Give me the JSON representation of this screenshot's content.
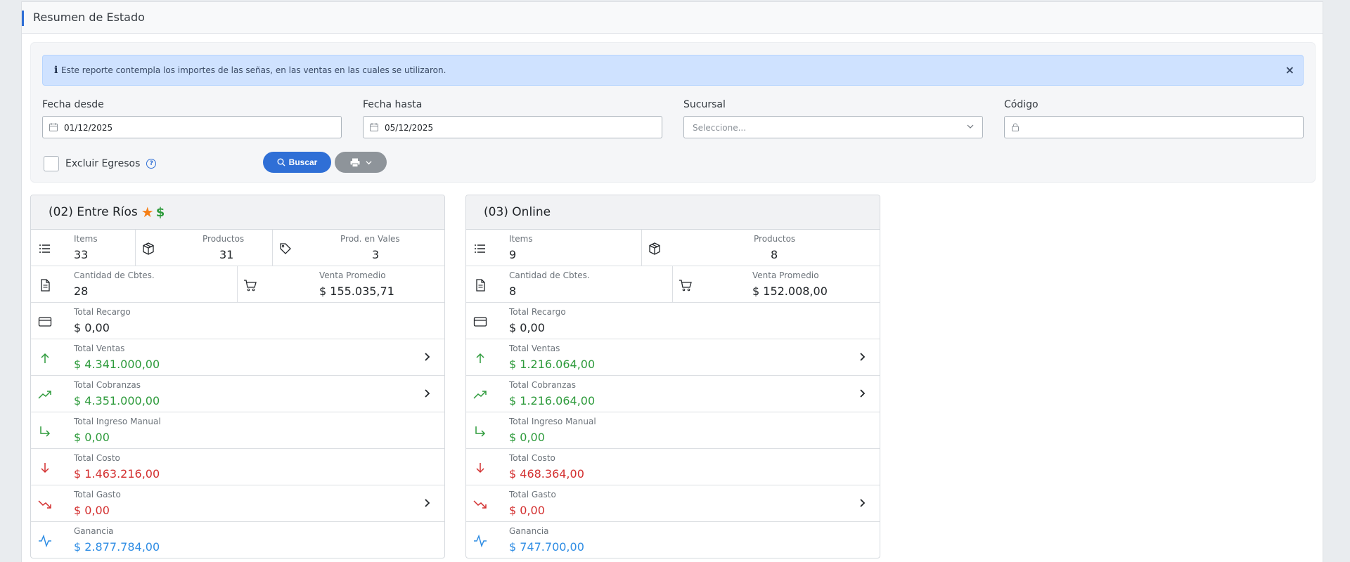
{
  "page": {
    "title": "Resumen de Estado"
  },
  "alert": {
    "icon": "info-icon",
    "text": "Este reporte contempla los importes de las señas, en las ventas en las cuales se utilizaron."
  },
  "filters": {
    "fecha_desde": {
      "label": "Fecha desde",
      "value": "01/12/2025"
    },
    "fecha_hasta": {
      "label": "Fecha hasta",
      "value": "05/12/2025"
    },
    "sucursal": {
      "label": "Sucursal",
      "placeholder": "Seleccione..."
    },
    "codigo": {
      "label": "Código",
      "value": ""
    },
    "excluir_egresos": {
      "label": "Excluir Egresos",
      "checked": false
    },
    "search_label": "Buscar"
  },
  "cards": [
    {
      "title": "(02) Entre Ríos",
      "badges": [
        "star-icon",
        "dollar-icon"
      ],
      "items": {
        "label": "Items",
        "value": "33"
      },
      "productos": {
        "label": "Productos",
        "value": "31"
      },
      "prod_vales": {
        "label": "Prod. en Vales",
        "value": "3"
      },
      "cbtes": {
        "label": "Cantidad de Cbtes.",
        "value": "28"
      },
      "venta_promedio": {
        "label": "Venta Promedio",
        "value": "$ 155.035,71"
      },
      "recargo": {
        "label": "Total Recargo",
        "value": "$ 0,00"
      },
      "ventas": {
        "label": "Total Ventas",
        "value": "$ 4.341.000,00"
      },
      "cobranzas": {
        "label": "Total Cobranzas",
        "value": "$ 4.351.000,00"
      },
      "ingreso_manual": {
        "label": "Total Ingreso Manual",
        "value": "$ 0,00"
      },
      "costo": {
        "label": "Total Costo",
        "value": "$ 1.463.216,00"
      },
      "gasto": {
        "label": "Total Gasto",
        "value": "$ 0,00"
      },
      "ganancia": {
        "label": "Ganancia",
        "value": "$ 2.877.784,00"
      }
    },
    {
      "title": "(03) Online",
      "badges": [],
      "items": {
        "label": "Items",
        "value": "9"
      },
      "productos": {
        "label": "Productos",
        "value": "8"
      },
      "cbtes": {
        "label": "Cantidad de Cbtes.",
        "value": "8"
      },
      "venta_promedio": {
        "label": "Venta Promedio",
        "value": "$ 152.008,00"
      },
      "recargo": {
        "label": "Total Recargo",
        "value": "$ 0,00"
      },
      "ventas": {
        "label": "Total Ventas",
        "value": "$ 1.216.064,00"
      },
      "cobranzas": {
        "label": "Total Cobranzas",
        "value": "$ 1.216.064,00"
      },
      "ingreso_manual": {
        "label": "Total Ingreso Manual",
        "value": "$ 0,00"
      },
      "costo": {
        "label": "Total Costo",
        "value": "$ 468.364,00"
      },
      "gasto": {
        "label": "Total Gasto",
        "value": "$ 0,00"
      },
      "ganancia": {
        "label": "Ganancia",
        "value": "$ 747.700,00"
      }
    }
  ],
  "colors": {
    "primary": "#2f6fd6",
    "positive": "#2e9b3c",
    "negative": "#d32f2f",
    "profit": "#2f8de4",
    "alert_bg": "#cfe2ff"
  }
}
